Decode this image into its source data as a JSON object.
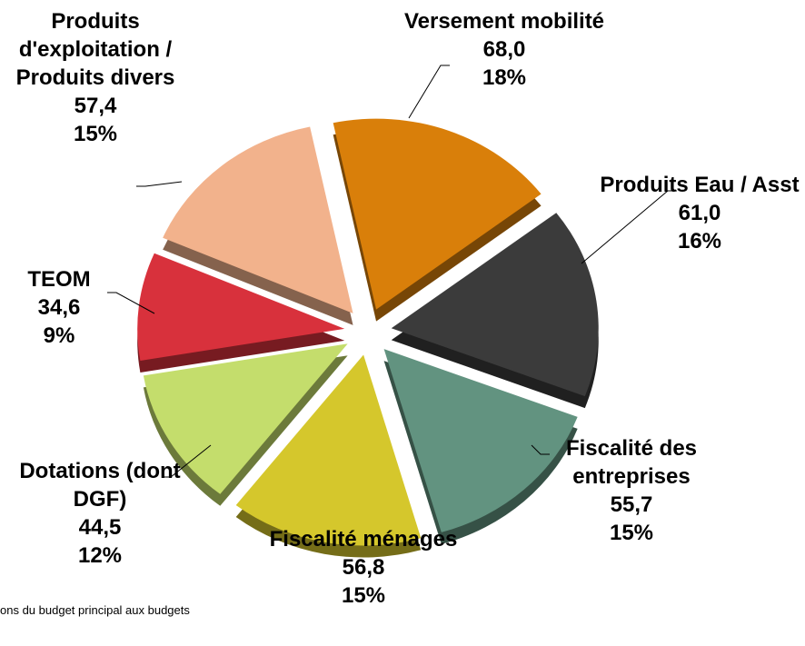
{
  "chart_data": {
    "type": "pie",
    "categories": [
      "Versement mobilité",
      "Produits Eau / Asst",
      "Fiscalité des entreprises",
      "Fiscalité ménages",
      "Dotations (dont DGF)",
      "TEOM",
      "Produits d'exploitation / Produits divers"
    ],
    "values": [
      68.0,
      61.0,
      55.7,
      56.8,
      44.5,
      34.6,
      57.4
    ],
    "value_labels": [
      "68,0",
      "61,0",
      "55,7",
      "56,8",
      "44,5",
      "34,6",
      "57,4"
    ],
    "percents": [
      18,
      16,
      15,
      15,
      12,
      9,
      15
    ],
    "percent_labels": [
      "18%",
      "16%",
      "15%",
      "15%",
      "12%",
      "9%",
      "15%"
    ],
    "colors": [
      "#d97f0a",
      "#3b3b3b",
      "#629380",
      "#d5c72c",
      "#c4dd6c",
      "#d8313c",
      "#f2b28c"
    ],
    "footnote": "ons du budget principal aux budgets"
  }
}
